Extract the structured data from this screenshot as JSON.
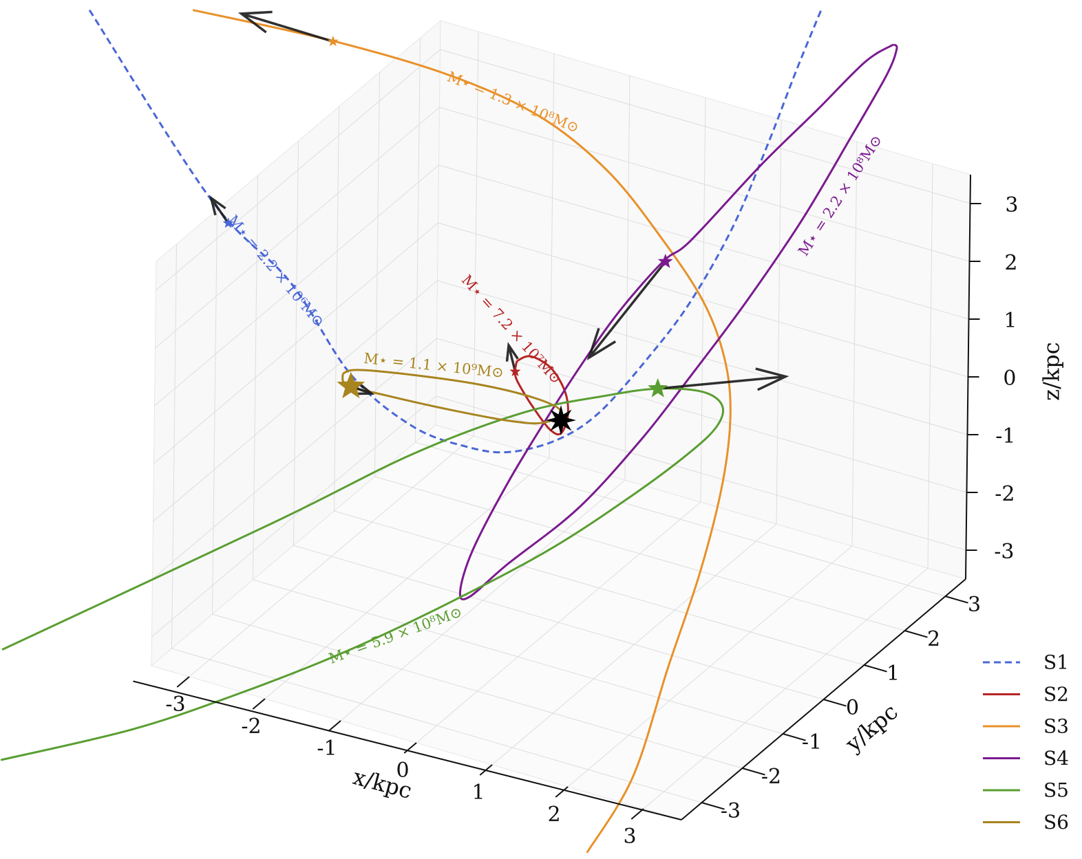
{
  "chart_data": {
    "type": "line3d",
    "xlabel": "x/kpc",
    "ylabel": "y/kpc",
    "zlabel": "z/kpc",
    "xlim": [
      -3.5,
      3.5
    ],
    "ylim": [
      -3.5,
      3.5
    ],
    "zlim": [
      -3.5,
      3.5
    ],
    "xticks": [
      -3,
      -2,
      -1,
      0,
      1,
      2,
      3
    ],
    "yticks": [
      -3,
      -2,
      -1,
      0,
      1,
      2,
      3
    ],
    "zticks": [
      -3,
      -2,
      -1,
      0,
      1,
      2,
      3
    ],
    "grid": true,
    "legend": "lower right",
    "center": {
      "x": 0,
      "y": 0,
      "z": 0
    },
    "series": [
      {
        "name": "S1",
        "color": "#4a67d6",
        "dashed": true,
        "label": "M⋆ = 2.2 × 10⁶M⊙",
        "x": [
          -6.27,
          -4.64,
          -3.59,
          -2.77,
          -1.95,
          -1.23,
          -0.68,
          -0.05,
          0.5,
          1.14,
          1.68,
          2.23,
          2.68,
          3.05,
          3.36
        ],
        "y": [
          0,
          0,
          0,
          0,
          0,
          0,
          0,
          0,
          0,
          0,
          0,
          0,
          0,
          0,
          0
        ],
        "z": [
          4.71,
          2.05,
          1.03,
          -0.27,
          -0.85,
          -0.93,
          -0.81,
          -0.36,
          0.32,
          1.52,
          2.68,
          4.19,
          5.8,
          7.24,
          8.38
        ],
        "position": {
          "x": -4.41,
          "y": 0,
          "z": 1.73
        },
        "arrow": {
          "x": -4.64,
          "y": 0,
          "z": 2.08
        }
      },
      {
        "name": "S2",
        "color": "#b52424",
        "dashed": false,
        "label": "M⋆ = 7.2 × 10⁷M⊙",
        "x": [
          -0.59,
          -0.41,
          -0.14,
          0.05,
          0.09,
          0,
          -0.14,
          -0.32,
          -0.5,
          -0.61,
          -0.59
        ],
        "y": [
          0,
          0,
          0,
          0,
          0,
          0,
          0,
          0,
          0,
          0,
          0
        ],
        "z": [
          0.8,
          0.95,
          0.85,
          0.51,
          0.11,
          -0.23,
          -0.22,
          0.01,
          0.3,
          0.55,
          0.8
        ],
        "position": {
          "x": -0.61,
          "y": 0,
          "z": 0.61
        },
        "arrow": {
          "x": -0.7,
          "y": 0,
          "z": 1.03
        }
      },
      {
        "name": "S3",
        "color": "#e8912a",
        "dashed": false,
        "label": "M⋆ = 1.3 × 10⁸M⊙",
        "x": [
          -4.91,
          -3.05,
          -1.5,
          -0.32,
          0.59,
          1.32,
          1.86,
          2.14,
          2.23,
          2.14,
          1.86,
          1.45,
          1.0,
          0.41
        ],
        "y": [
          0,
          0,
          0,
          0,
          0,
          0,
          0,
          0,
          0,
          0,
          0,
          0,
          0,
          0
        ],
        "z": [
          5.23,
          5.4,
          5.39,
          5.13,
          4.52,
          3.61,
          2.75,
          1.9,
          0.98,
          -0.25,
          -1.9,
          -3.72,
          -5.8,
          -7.33
        ],
        "position": {
          "x": -3.06,
          "y": 0,
          "z": 5.39
        },
        "arrow": {
          "x": -4.27,
          "y": 0,
          "z": 5.41
        }
      },
      {
        "name": "S4",
        "color": "#7b1a8f",
        "dashed": false,
        "label": "M⋆ = 2.2 × 10⁸M⊙",
        "x": [
          4.32,
          3.95,
          3.32,
          2.59,
          1.68,
          1.32,
          0.77,
          0.32,
          -0.14,
          -0.68,
          -1.14,
          -1.3,
          -1.18,
          -0.68,
          0.23,
          1.05,
          1.68,
          2.41,
          3.14,
          3.77,
          4.23,
          4.36,
          4.32
        ],
        "y": [
          0,
          0,
          0,
          0,
          0,
          0,
          0,
          0,
          0,
          0,
          0,
          0,
          0,
          0,
          0,
          0,
          0,
          0,
          0,
          0,
          0,
          0,
          0
        ],
        "z": [
          8.15,
          7.71,
          6.63,
          5.4,
          3.75,
          3.25,
          2.21,
          1.2,
          0.08,
          -1.32,
          -2.68,
          -3.46,
          -3.51,
          -2.75,
          -1.45,
          0.05,
          1.37,
          2.95,
          4.66,
          6.33,
          7.58,
          8.08,
          8.15
        ],
        "position": {
          "x": 1.35,
          "y": 0,
          "z": 3.26
        },
        "arrow": {
          "x": 0.36,
          "y": 0,
          "z": 1.22
        }
      },
      {
        "name": "S5",
        "color": "#5a9e32",
        "dashed": false,
        "label": "M⋆ = 5.9 × 10⁸M⊙",
        "x": [
          -7.32,
          -3.77,
          -1.95,
          -0.5,
          0.59,
          1.27,
          1.86,
          2.12,
          2.05,
          1.68,
          0.95,
          -0.14,
          -1.5,
          -2.86,
          -4.23,
          -5.59,
          -7.32
        ],
        "y": [
          0,
          0,
          0,
          0,
          0,
          0,
          0,
          0,
          0,
          0,
          0,
          0,
          0,
          0,
          0,
          0,
          0
        ],
        "z": [
          -6.76,
          -3.21,
          -1.33,
          -0.06,
          0.65,
          1.03,
          1.2,
          1.06,
          0.67,
          0.06,
          -0.94,
          -2.3,
          -3.77,
          -5.13,
          -6.36,
          -7.48,
          -8.67
        ],
        "position": {
          "x": 1.27,
          "y": 0,
          "z": 1.03
        },
        "arrow": {
          "x": 2.95,
          "y": 0,
          "z": 1.88
        }
      },
      {
        "name": "S6",
        "color": "#a8841e",
        "dashed": false,
        "label": "M⋆ = 1.1 × 10⁹M⊙",
        "x": [
          -2.88,
          -2.68,
          -1.95,
          -1.05,
          -0.32,
          0,
          -0.23,
          -0.68,
          -1.5,
          -2.32,
          -2.82,
          -2.88
        ],
        "y": [
          0,
          0,
          0,
          0,
          0,
          0,
          0,
          0,
          0,
          0,
          0,
          0
        ],
        "z": [
          -0.29,
          -0.15,
          0.04,
          0.21,
          0.25,
          0.15,
          -0.13,
          -0.27,
          -0.38,
          -0.45,
          -0.47,
          -0.29
        ],
        "position": {
          "x": -2.77,
          "y": 0,
          "z": -0.47
        },
        "arrow": {
          "x": -2.5,
          "y": 0,
          "z": -0.49
        }
      }
    ]
  }
}
